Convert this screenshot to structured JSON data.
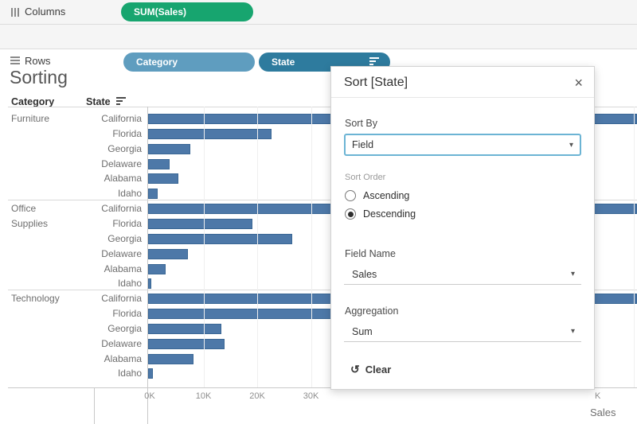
{
  "icons": {
    "close": "×",
    "caret": "▾",
    "clear": "↺"
  },
  "shelves": {
    "columns": {
      "label": "Columns",
      "pills": [
        {
          "text": "SUM(Sales)",
          "color": "#17a56f"
        }
      ]
    },
    "rows": {
      "label": "Rows",
      "pills": [
        {
          "text": "Category",
          "color": "#5f9dbf",
          "sorted": false
        },
        {
          "text": "State",
          "color": "#2e7b9e",
          "sorted": true
        }
      ]
    }
  },
  "sheet": {
    "title": "Sorting"
  },
  "dialog": {
    "title": "Sort [State]",
    "sort_by": {
      "label": "Sort By",
      "value": "Field"
    },
    "sort_order": {
      "label": "Sort Order",
      "options": [
        {
          "label": "Ascending",
          "selected": false
        },
        {
          "label": "Descending",
          "selected": true
        }
      ]
    },
    "field_name": {
      "label": "Field Name",
      "value": "Sales"
    },
    "aggregation": {
      "label": "Aggregation",
      "value": "Sum"
    },
    "clear_label": "Clear"
  },
  "chart_data": {
    "type": "bar",
    "orientation": "horizontal",
    "title": "Sorting",
    "column_headers": [
      "Category",
      "State"
    ],
    "xlabel": "Sales",
    "x_ticks_visible": [
      "0K",
      "10K",
      "20K",
      "30K"
    ],
    "x_tick_partial_right": "K",
    "x_axis_units": "thousands (K)",
    "x_gridlines": true,
    "bar_color": "#4d78a8",
    "sort": {
      "field": "Sales",
      "aggregation": "Sum",
      "order": "Descending"
    },
    "groups": [
      {
        "category": "Furniture",
        "rows": [
          {
            "state": "California",
            "value_k": 92,
            "clipped": true
          },
          {
            "state": "Florida",
            "value_k": 23.1
          },
          {
            "state": "Georgia",
            "value_k": 7.9
          },
          {
            "state": "Delaware",
            "value_k": 4.0
          },
          {
            "state": "Alabama",
            "value_k": 5.7
          },
          {
            "state": "Idaho",
            "value_k": 1.8
          }
        ]
      },
      {
        "category": "Office Supplies",
        "rows": [
          {
            "state": "California",
            "value_k": 92,
            "clipped": true
          },
          {
            "state": "Florida",
            "value_k": 19.6
          },
          {
            "state": "Georgia",
            "value_k": 27.0
          },
          {
            "state": "Delaware",
            "value_k": 7.5
          },
          {
            "state": "Alabama",
            "value_k": 3.3
          },
          {
            "state": "Idaho",
            "value_k": 0.6
          }
        ]
      },
      {
        "category": "Technology",
        "rows": [
          {
            "state": "California",
            "value_k": 92,
            "clipped": true
          },
          {
            "state": "Florida",
            "value_k": 36.5
          },
          {
            "state": "Georgia",
            "value_k": 13.7
          },
          {
            "state": "Delaware",
            "value_k": 14.3
          },
          {
            "state": "Alabama",
            "value_k": 8.5
          },
          {
            "state": "Idaho",
            "value_k": 0.9
          }
        ]
      }
    ]
  }
}
